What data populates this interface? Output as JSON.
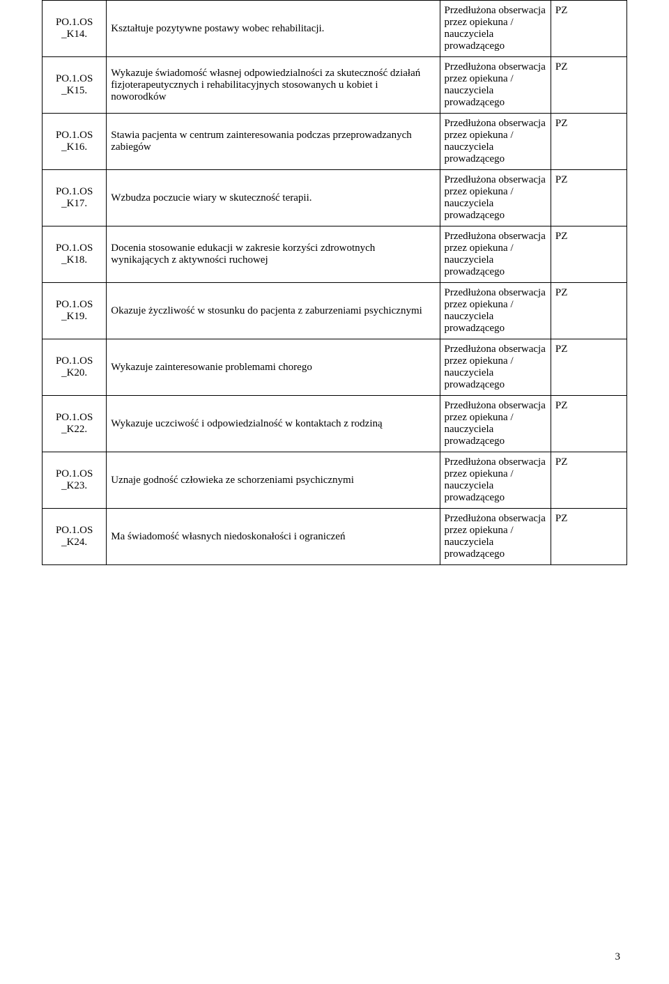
{
  "columns": {
    "widths": [
      "11%",
      "57%",
      "19%",
      "13%"
    ]
  },
  "method_text": "Przedłużona obserwacja przez opiekuna / nauczyciela prowadzącego",
  "pz": "PZ",
  "rows": [
    {
      "code": "PO.1.OS_K14.",
      "desc": "Kształtuje pozytywne postawy wobec rehabilitacji."
    },
    {
      "code": "PO.1.OS_K15.",
      "desc": "Wykazuje świadomość własnej odpowiedzialności za skuteczność działań fizjoterapeutycznych i rehabilitacyjnych stosowanych u kobiet i noworodków"
    },
    {
      "code": "PO.1.OS_K16.",
      "desc": "Stawia pacjenta w centrum zainteresowania podczas przeprowadzanych zabiegów"
    },
    {
      "code": "PO.1.OS_K17.",
      "desc": "Wzbudza poczucie wiary w skuteczność terapii."
    },
    {
      "code": "PO.1.OS_K18.",
      "desc": "Docenia stosowanie edukacji w zakresie korzyści zdrowotnych wynikających z aktywności ruchowej"
    },
    {
      "code": "PO.1.OS_K19.",
      "desc": "Okazuje życzliwość w stosunku do pacjenta z zaburzeniami psychicznymi"
    },
    {
      "code": "PO.1.OS_K20.",
      "desc": "Wykazuje zainteresowanie problemami chorego"
    },
    {
      "code": "PO.1.OS_K22.",
      "desc": "Wykazuje uczciwość i odpowiedzialność w kontaktach z rodziną"
    },
    {
      "code": "PO.1.OS_K23.",
      "desc": "Uznaje godność człowieka ze schorzeniami psychicznymi"
    },
    {
      "code": "PO.1.OS_K24.",
      "desc": "Ma świadomość własnych niedoskonałości i ograniczeń"
    }
  ],
  "page_number": "3"
}
